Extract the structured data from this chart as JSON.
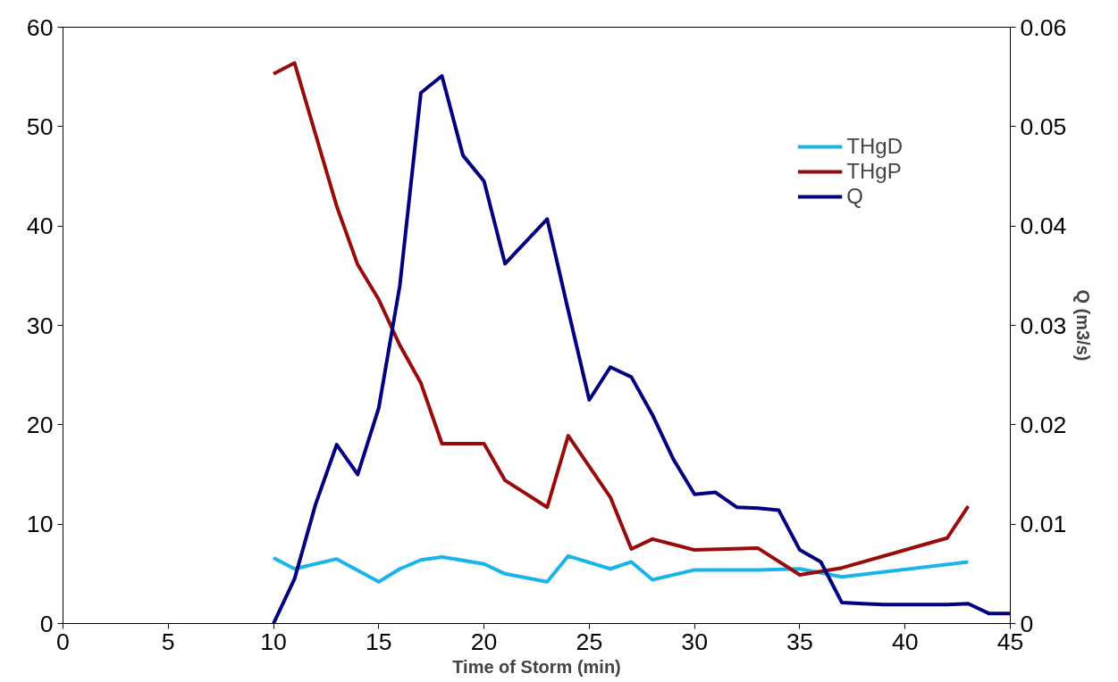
{
  "chart_data": {
    "type": "line",
    "xlabel": "Time of Storm (min)",
    "y2label": "Q (m3/s)",
    "xlim": [
      0,
      45
    ],
    "xticks": [
      0,
      5,
      10,
      15,
      20,
      25,
      30,
      35,
      40,
      45
    ],
    "ylim": [
      0,
      60
    ],
    "yticks": [
      0,
      10,
      20,
      30,
      40,
      50,
      60
    ],
    "y2lim": [
      0,
      0.06
    ],
    "y2ticks": [
      0,
      0.01,
      0.02,
      0.03,
      0.04,
      0.05,
      0.06
    ],
    "grid": false,
    "legend": "top right",
    "marker": "none",
    "line_style": "solid",
    "series": [
      {
        "name": "THgD",
        "color": "#19b4ea",
        "x": [
          10,
          11,
          13,
          15,
          16,
          17,
          18,
          20,
          21,
          23,
          24,
          26,
          27,
          28,
          30,
          33,
          35,
          37,
          43
        ],
        "values": [
          6.6,
          5.5,
          6.5,
          4.2,
          5.5,
          6.4,
          6.7,
          6.0,
          5.0,
          4.2,
          6.8,
          5.5,
          6.2,
          4.4,
          5.4,
          5.4,
          5.5,
          4.7,
          6.2
        ]
      },
      {
        "name": "THgP",
        "color": "#990a0a",
        "x": [
          10,
          11,
          12,
          13,
          14,
          15,
          16,
          17,
          18,
          20,
          21,
          23,
          24,
          26,
          27,
          28,
          30,
          33,
          35,
          37,
          42,
          43
        ],
        "values": [
          55.3,
          56.4,
          49.2,
          42,
          36.1,
          32.6,
          28,
          24.2,
          18.1,
          18.1,
          14.4,
          11.7,
          18.9,
          12.7,
          7.5,
          8.5,
          7.4,
          7.6,
          4.9,
          5.6,
          8.6,
          11.8
        ]
      },
      {
        "name": "Q",
        "color": "#000080",
        "axis": "y2",
        "x": [
          10,
          11,
          12,
          13,
          14,
          15,
          16,
          17,
          18,
          19,
          20,
          21,
          23,
          24,
          25,
          26,
          27,
          28,
          29,
          30,
          31,
          32,
          33,
          34,
          35,
          36,
          37,
          38,
          39,
          40,
          41,
          42,
          43,
          44,
          45
        ],
        "values": [
          0,
          0.0045,
          0.012,
          0.018,
          0.015,
          0.0217,
          0.034,
          0.0534,
          0.0551,
          0.0471,
          0.0445,
          0.0362,
          0.0407,
          0.0315,
          0.0225,
          0.0258,
          0.0248,
          0.021,
          0.0165,
          0.013,
          0.0132,
          0.0117,
          0.0116,
          0.0114,
          0.0074,
          0.0062,
          0.0021,
          0.002,
          0.0019,
          0.0019,
          0.0019,
          0.0019,
          0.002,
          0.001,
          0.001
        ]
      }
    ]
  }
}
